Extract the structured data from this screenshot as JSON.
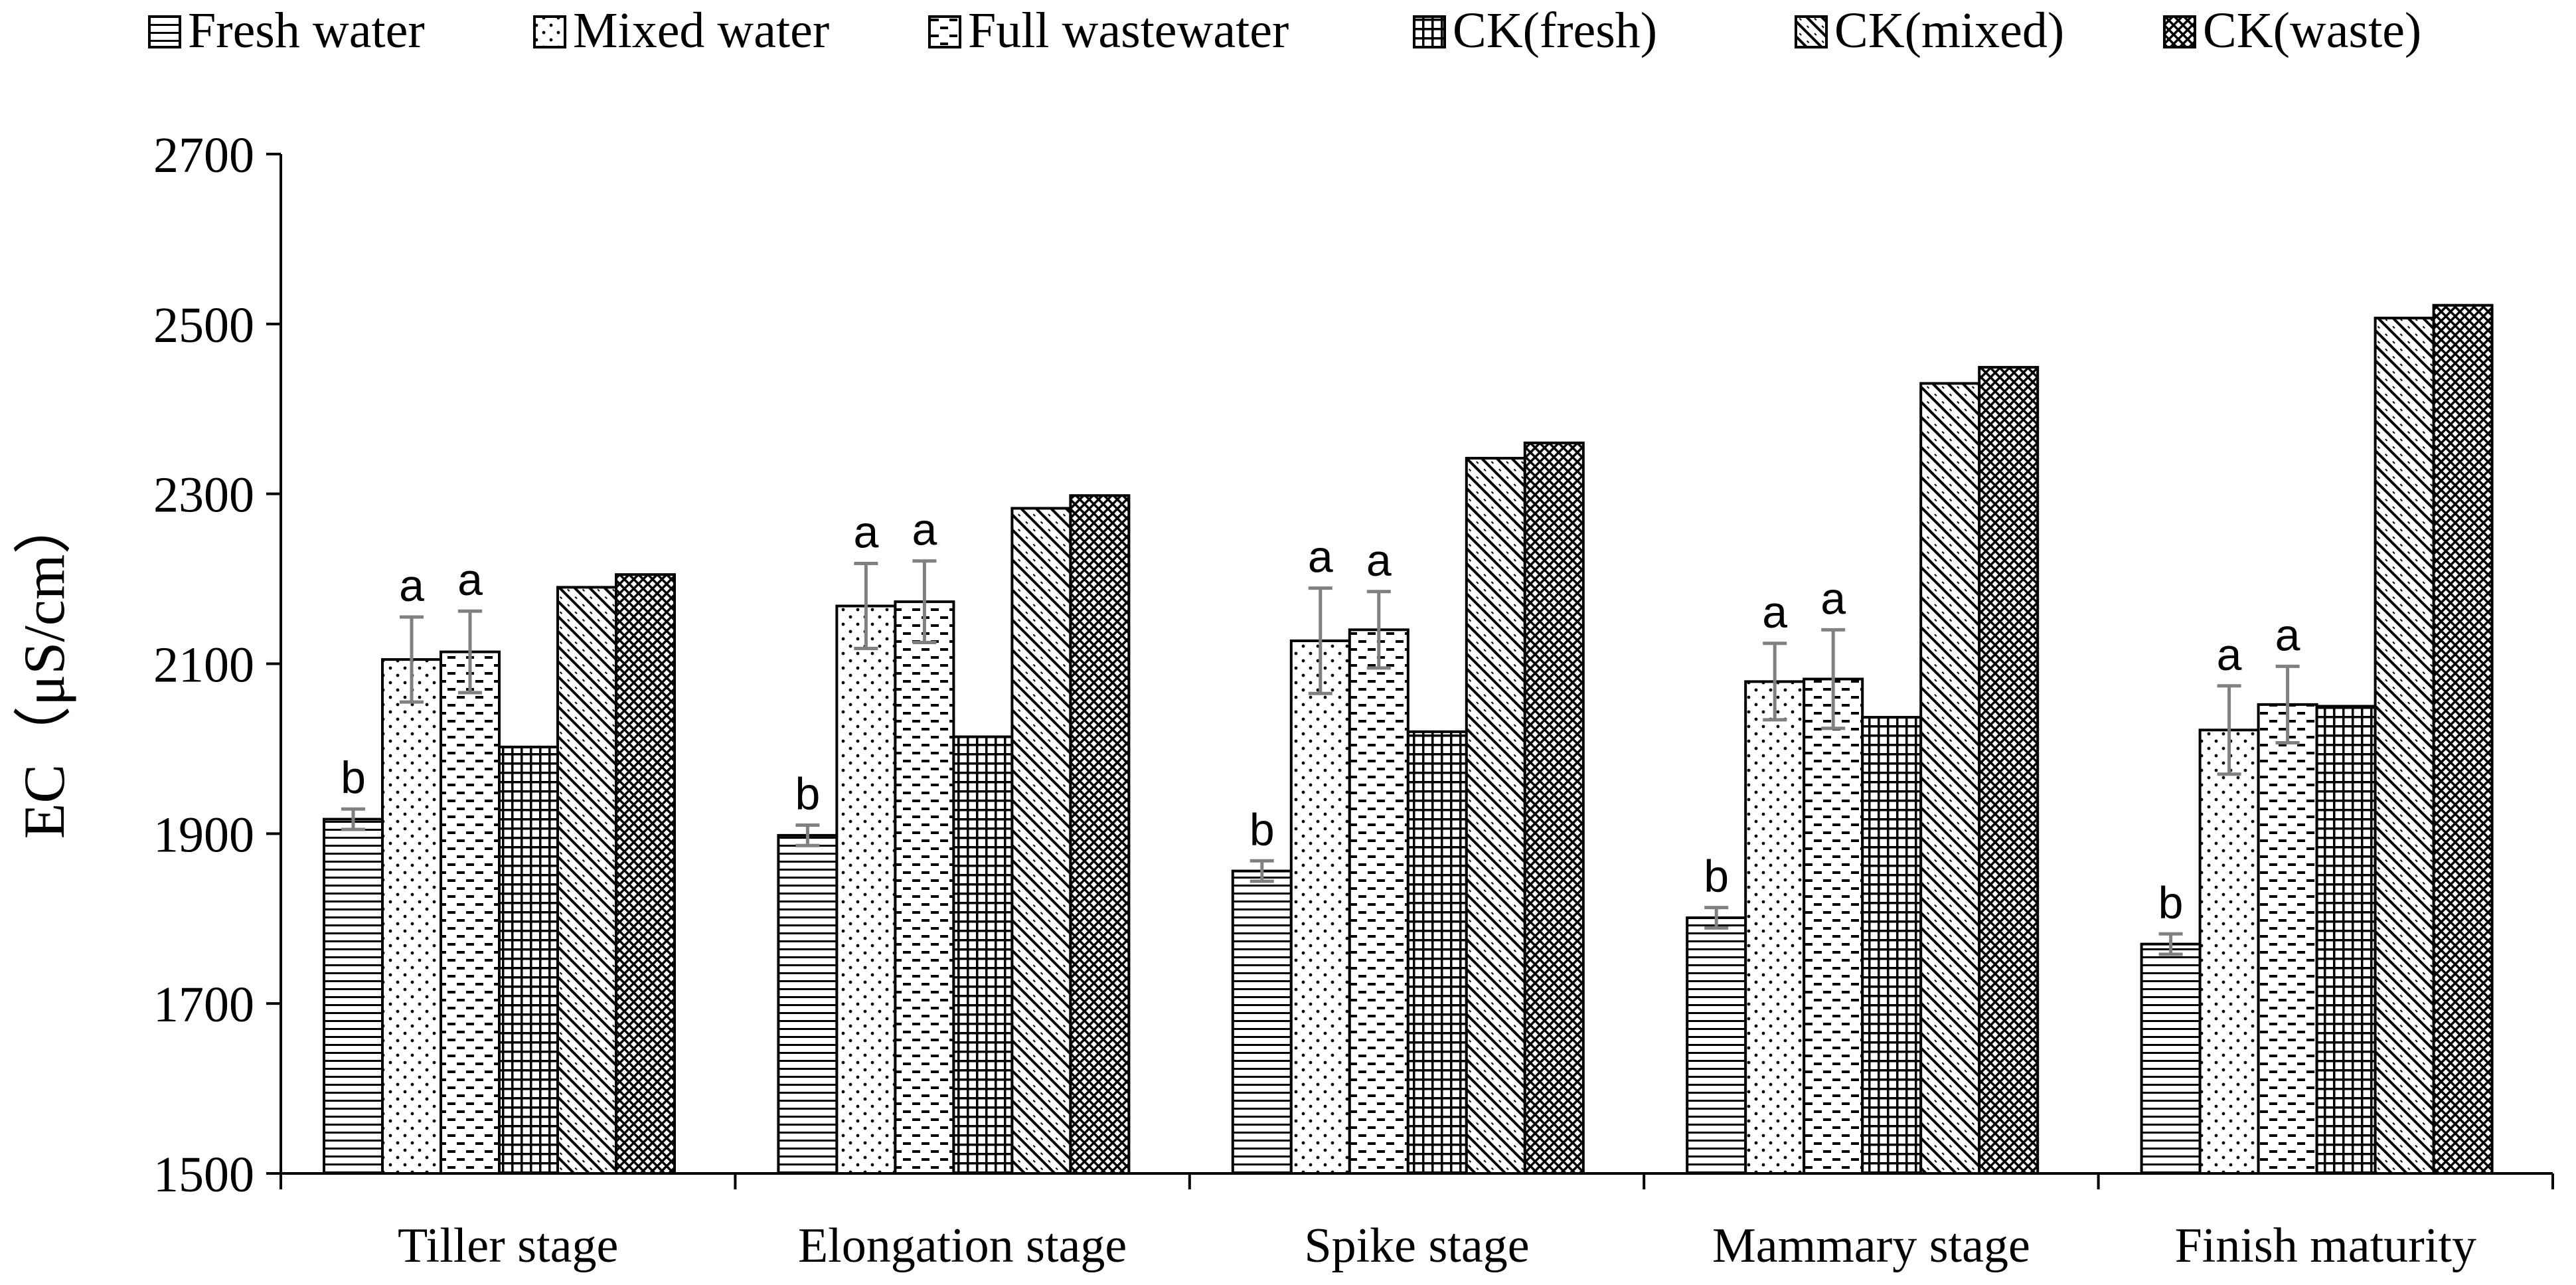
{
  "chart_data": {
    "type": "bar",
    "title": "",
    "xlabel": "",
    "ylabel": "EC（μS/cm）",
    "ylim": [
      1500,
      2700
    ],
    "yticks": [
      1500,
      1700,
      1900,
      2100,
      2300,
      2500,
      2700
    ],
    "grid": false,
    "legend_position": "top",
    "categories": [
      "Tiller stage",
      "Elongation stage",
      "Spike stage",
      "Mammary stage",
      "Finish maturity"
    ],
    "series": [
      {
        "name": "Fresh water",
        "pattern": "hlines",
        "values": [
          1917,
          1898,
          1856,
          1801,
          1770
        ],
        "errors": [
          12,
          12,
          12,
          12,
          12
        ],
        "labels": [
          "b",
          "b",
          "b",
          "b",
          "b"
        ]
      },
      {
        "name": "Mixed water",
        "pattern": "dots",
        "values": [
          2105,
          2168,
          2127,
          2079,
          2022
        ],
        "errors": [
          50,
          50,
          62,
          45,
          52
        ],
        "labels": [
          "a",
          "a",
          "a",
          "a",
          "a"
        ]
      },
      {
        "name": "Full wastewater",
        "pattern": "dashes",
        "values": [
          2114,
          2173,
          2140,
          2082,
          2052
        ],
        "errors": [
          48,
          48,
          45,
          58,
          45
        ],
        "labels": [
          "a",
          "a",
          "a",
          "a",
          "a"
        ]
      },
      {
        "name": "CK(fresh)",
        "pattern": "grid",
        "values": [
          2002,
          2014,
          2020,
          2037,
          2050
        ],
        "errors": [],
        "labels": []
      },
      {
        "name": "CK(mixed)",
        "pattern": "diagonal",
        "values": [
          2190,
          2283,
          2342,
          2430,
          2507
        ],
        "errors": [],
        "labels": []
      },
      {
        "name": "CK(waste)",
        "pattern": "crosshatch",
        "values": [
          2205,
          2298,
          2360,
          2449,
          2522
        ],
        "errors": [],
        "labels": []
      }
    ]
  }
}
